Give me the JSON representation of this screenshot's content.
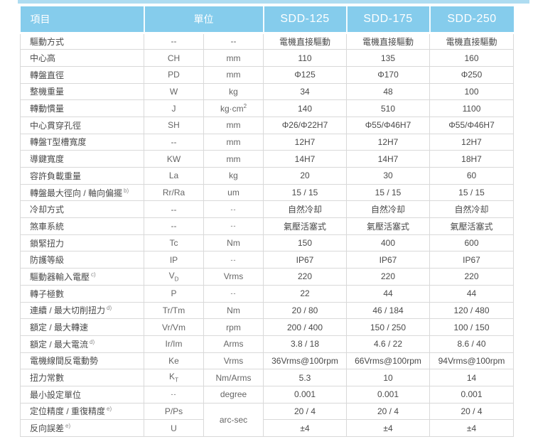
{
  "colors": {
    "header_bg": "#85ccec",
    "header_text": "#ffffff",
    "top_strip": "#aedcf1",
    "grid_border": "#d9d9d9",
    "body_text": "#4a4a4a"
  },
  "table": {
    "header_item": "項目",
    "header_unit": "單位",
    "products": [
      "SDD-125",
      "SDD-175",
      "SDD-250"
    ],
    "rows": [
      {
        "item": "驅動方式",
        "symbol": "--",
        "unit": "--",
        "values": [
          "電機直接驅動",
          "電機直接驅動",
          "電機直接驅動"
        ]
      },
      {
        "item": "中心高",
        "symbol": "CH",
        "unit": "mm",
        "values": [
          "110",
          "135",
          "160"
        ]
      },
      {
        "item": "轉盤直徑",
        "symbol": "PD",
        "unit": "mm",
        "values": [
          "Φ125",
          "Φ170",
          "Φ250"
        ]
      },
      {
        "item": "整機重量",
        "symbol": "W",
        "unit": "kg",
        "values": [
          "34",
          "48",
          "100"
        ]
      },
      {
        "item": "轉動慣量",
        "symbol": "J",
        "unit": "kg·cm",
        "unit_sup": "2",
        "values": [
          "140",
          "510",
          "1100"
        ]
      },
      {
        "item": "中心貫穿孔徑",
        "symbol": "SH",
        "unit": "mm",
        "values": [
          "Φ26/Φ22H7",
          "Φ55/Φ46H7",
          "Φ55/Φ46H7"
        ]
      },
      {
        "item": "轉盤T型槽寬度",
        "symbol": "--",
        "unit": "mm",
        "values": [
          "12H7",
          "12H7",
          "12H7"
        ]
      },
      {
        "item": "導鍵寬度",
        "symbol": "KW",
        "unit": "mm",
        "values": [
          "14H7",
          "14H7",
          "18H7"
        ]
      },
      {
        "item": "容許負載重量",
        "symbol": "La",
        "unit": "kg",
        "values": [
          "20",
          "30",
          "60"
        ]
      },
      {
        "item": "轉盤最大徑向 / 軸向偏擺",
        "sup": "b)",
        "symbol": "Rr/Ra",
        "unit": "um",
        "values": [
          "15 / 15",
          "15 / 15",
          "15 / 15"
        ]
      },
      {
        "item": "冷却方式",
        "symbol": "--",
        "unit": "--",
        "unit_small": true,
        "values": [
          "自然冷却",
          "自然冷却",
          "自然冷却"
        ]
      },
      {
        "item": "煞車系統",
        "symbol": "--",
        "unit": "--",
        "unit_small": true,
        "values": [
          "氣壓活塞式",
          "氣壓活塞式",
          "氣壓活塞式"
        ]
      },
      {
        "item": "鎖緊扭力",
        "symbol": "Tc",
        "unit": "Nm",
        "values": [
          "150",
          "400",
          "600"
        ]
      },
      {
        "item": "防護等級",
        "symbol": "IP",
        "unit": "--",
        "unit_small": true,
        "values": [
          "IP67",
          "IP67",
          "IP67"
        ]
      },
      {
        "item": "驅動器輸入電壓",
        "sup": "c)",
        "symbol": "V",
        "symbol_sub": "D",
        "unit": "Vrms",
        "values": [
          "220",
          "220",
          "220"
        ]
      },
      {
        "item": "轉子極數",
        "symbol": "P",
        "unit": "--",
        "unit_small": true,
        "values": [
          "22",
          "44",
          "44"
        ]
      },
      {
        "item": "連續 / 最大切削扭力",
        "sup": "d)",
        "symbol": "Tr/Tm",
        "unit": "Nm",
        "values": [
          "20 / 80",
          "46 / 184",
          "120 / 480"
        ]
      },
      {
        "item": "額定 / 最大轉速",
        "symbol": "Vr/Vm",
        "unit": "rpm",
        "values": [
          "200 / 400",
          "150 / 250",
          "100 / 150"
        ]
      },
      {
        "item": "額定 / 最大電流",
        "sup": "d)",
        "symbol": "Ir/Im",
        "unit": "Arms",
        "values": [
          "3.8 / 18",
          "4.6 / 22",
          "8.6 / 40"
        ]
      },
      {
        "item": "電機線間反電動勢",
        "symbol": "Ke",
        "unit": "Vrms",
        "values": [
          "36Vrms@100rpm",
          "66Vrms@100rpm",
          "94Vrms@100rpm"
        ]
      },
      {
        "item": "扭力常數",
        "symbol": "K",
        "symbol_sub": "T",
        "unit": "Nm/Arms",
        "values": [
          "5.3",
          "10",
          "14"
        ]
      },
      {
        "item": "最小設定單位",
        "symbol": "--",
        "symbol_small": true,
        "unit": "degree",
        "values": [
          "0.001",
          "0.001",
          "0.001"
        ]
      },
      {
        "item": "定位精度 / 重復精度",
        "sup": "e)",
        "symbol": "P/Ps",
        "unit": "arc-sec",
        "unit_rowspan": 2,
        "values": [
          "20 / 4",
          "20 / 4",
          "20 / 4"
        ]
      },
      {
        "item": "反向誤差",
        "sup": "e)",
        "symbol": "U",
        "unit_merged": true,
        "values": [
          "±4",
          "±4",
          "±4"
        ]
      }
    ]
  }
}
